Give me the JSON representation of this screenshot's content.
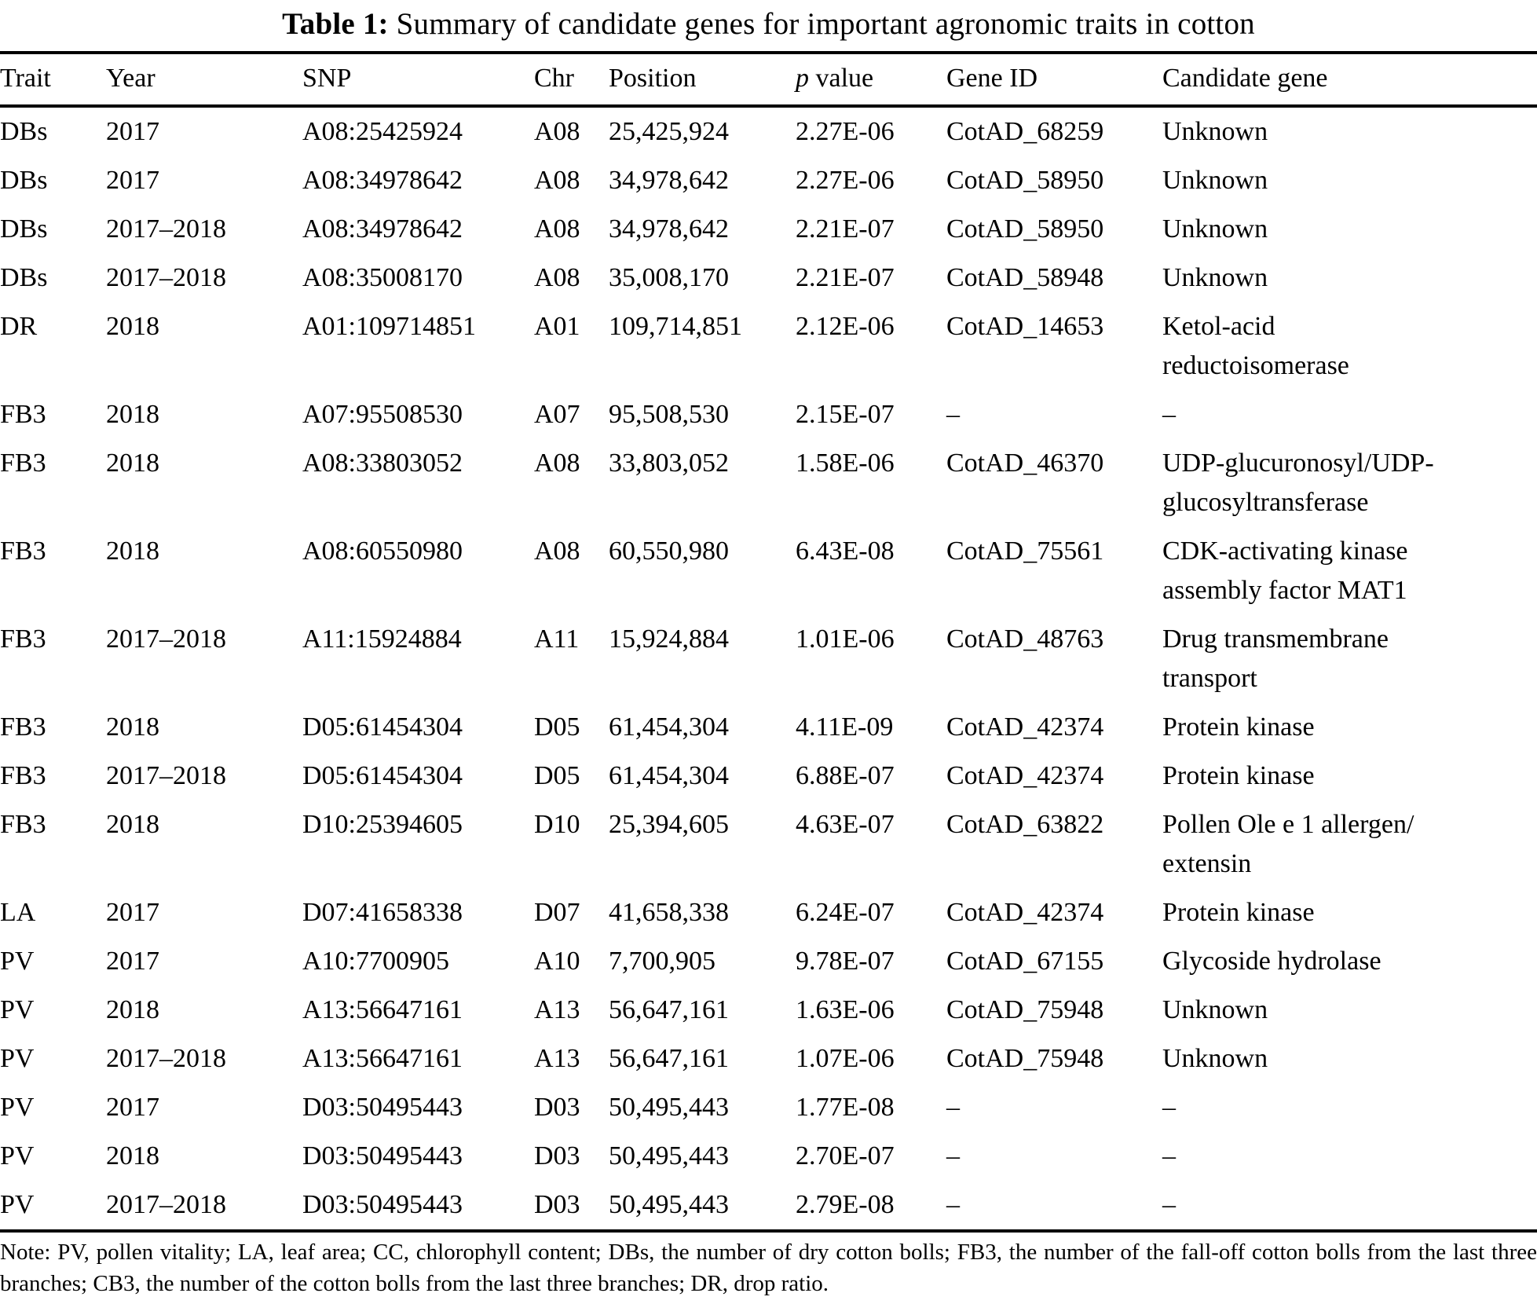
{
  "title": {
    "label": "Table 1:",
    "text": "Summary of candidate genes for important agronomic traits in cotton"
  },
  "table": {
    "headers": {
      "trait": "Trait",
      "year": "Year",
      "snp": "SNP",
      "chr": "Chr",
      "position": "Position",
      "p_value_italic": "p",
      "p_value_rest": "value",
      "gene_id": "Gene ID",
      "candidate_gene": "Candidate gene"
    },
    "rows": [
      {
        "trait": "DBs",
        "year": "2017",
        "snp": "A08:25425924",
        "chr": "A08",
        "position": "25,425,924",
        "p_value": "2.27E-06",
        "gene_id": "CotAD_68259",
        "candidate_gene": "Unknown"
      },
      {
        "trait": "DBs",
        "year": "2017",
        "snp": "A08:34978642",
        "chr": "A08",
        "position": "34,978,642",
        "p_value": "2.27E-06",
        "gene_id": "CotAD_58950",
        "candidate_gene": "Unknown"
      },
      {
        "trait": "DBs",
        "year": "2017–2018",
        "snp": "A08:34978642",
        "chr": "A08",
        "position": "34,978,642",
        "p_value": "2.21E-07",
        "gene_id": "CotAD_58950",
        "candidate_gene": "Unknown"
      },
      {
        "trait": "DBs",
        "year": "2017–2018",
        "snp": "A08:35008170",
        "chr": "A08",
        "position": "35,008,170",
        "p_value": "2.21E-07",
        "gene_id": "CotAD_58948",
        "candidate_gene": "Unknown"
      },
      {
        "trait": "DR",
        "year": "2018",
        "snp": "A01:109714851",
        "chr": "A01",
        "position": "109,714,851",
        "p_value": "2.12E-06",
        "gene_id": "CotAD_14653",
        "candidate_gene": "Ketol-acid\nreductoisomerase"
      },
      {
        "trait": "FB3",
        "year": "2018",
        "snp": "A07:95508530",
        "chr": "A07",
        "position": "95,508,530",
        "p_value": "2.15E-07",
        "gene_id": "–",
        "candidate_gene": "–"
      },
      {
        "trait": "FB3",
        "year": "2018",
        "snp": "A08:33803052",
        "chr": "A08",
        "position": "33,803,052",
        "p_value": "1.58E-06",
        "gene_id": "CotAD_46370",
        "candidate_gene": "UDP-glucuronosyl/UDP-\nglucosyltransferase"
      },
      {
        "trait": "FB3",
        "year": "2018",
        "snp": "A08:60550980",
        "chr": "A08",
        "position": "60,550,980",
        "p_value": "6.43E-08",
        "gene_id": "CotAD_75561",
        "candidate_gene": "CDK-activating kinase\nassembly factor MAT1"
      },
      {
        "trait": "FB3",
        "year": "2017–2018",
        "snp": "A11:15924884",
        "chr": "A11",
        "position": "15,924,884",
        "p_value": "1.01E-06",
        "gene_id": "CotAD_48763",
        "candidate_gene": "Drug transmembrane\ntransport"
      },
      {
        "trait": "FB3",
        "year": "2018",
        "snp": "D05:61454304",
        "chr": "D05",
        "position": "61,454,304",
        "p_value": "4.11E-09",
        "gene_id": "CotAD_42374",
        "candidate_gene": "Protein kinase"
      },
      {
        "trait": "FB3",
        "year": "2017–2018",
        "snp": "D05:61454304",
        "chr": "D05",
        "position": "61,454,304",
        "p_value": "6.88E-07",
        "gene_id": "CotAD_42374",
        "candidate_gene": "Protein kinase"
      },
      {
        "trait": "FB3",
        "year": "2018",
        "snp": "D10:25394605",
        "chr": "D10",
        "position": "25,394,605",
        "p_value": "4.63E-07",
        "gene_id": "CotAD_63822",
        "candidate_gene": "Pollen Ole e 1 allergen/\nextensin"
      },
      {
        "trait": "LA",
        "year": "2017",
        "snp": "D07:41658338",
        "chr": "D07",
        "position": "41,658,338",
        "p_value": "6.24E-07",
        "gene_id": "CotAD_42374",
        "candidate_gene": "Protein kinase"
      },
      {
        "trait": "PV",
        "year": "2017",
        "snp": "A10:7700905",
        "chr": "A10",
        "position": "7,700,905",
        "p_value": "9.78E-07",
        "gene_id": "CotAD_67155",
        "candidate_gene": "Glycoside hydrolase"
      },
      {
        "trait": "PV",
        "year": "2018",
        "snp": "A13:56647161",
        "chr": "A13",
        "position": "56,647,161",
        "p_value": "1.63E-06",
        "gene_id": "CotAD_75948",
        "candidate_gene": "Unknown"
      },
      {
        "trait": "PV",
        "year": "2017–2018",
        "snp": "A13:56647161",
        "chr": "A13",
        "position": "56,647,161",
        "p_value": "1.07E-06",
        "gene_id": "CotAD_75948",
        "candidate_gene": "Unknown"
      },
      {
        "trait": "PV",
        "year": "2017",
        "snp": "D03:50495443",
        "chr": "D03",
        "position": "50,495,443",
        "p_value": "1.77E-08",
        "gene_id": "–",
        "candidate_gene": "–"
      },
      {
        "trait": "PV",
        "year": "2018",
        "snp": "D03:50495443",
        "chr": "D03",
        "position": "50,495,443",
        "p_value": "2.70E-07",
        "gene_id": "–",
        "candidate_gene": "–"
      },
      {
        "trait": "PV",
        "year": "2017–2018",
        "snp": "D03:50495443",
        "chr": "D03",
        "position": "50,495,443",
        "p_value": "2.79E-08",
        "gene_id": "–",
        "candidate_gene": "–"
      }
    ]
  },
  "note": "Note: PV, pollen vitality; LA, leaf area; CC, chlorophyll content; DBs, the number of dry cotton bolls; FB3, the number of the fall-off cotton bolls from the last three branches; CB3, the number of the cotton bolls from the last three branches; DR, drop ratio."
}
